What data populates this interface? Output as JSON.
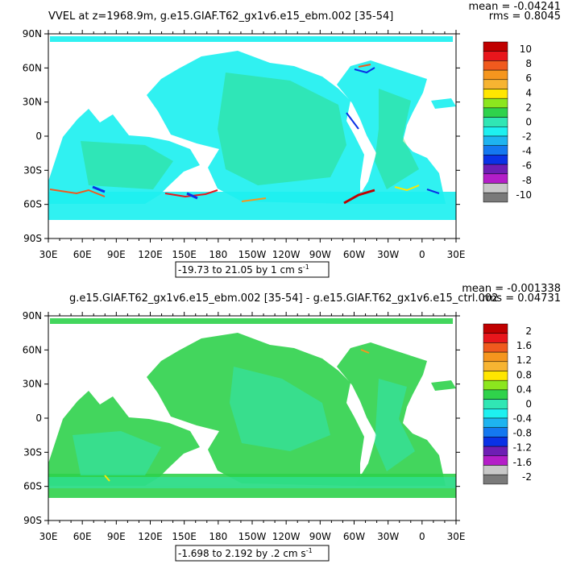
{
  "chart_data": [
    {
      "type": "heatmap",
      "title": "VVEL at z=1968.9m, g.e15.GIAF.T62_gx1v6.e15_ebm.002 [35-54]",
      "stat_mean": "mean = -0.04241",
      "stat_rms": "rms = 0.8045",
      "x_ticks": [
        "30E",
        "60E",
        "90E",
        "120E",
        "150E",
        "180",
        "150W",
        "120W",
        "90W",
        "60W",
        "30W",
        "0",
        "30E"
      ],
      "y_ticks": [
        "90N",
        "60N",
        "30N",
        "0",
        "30S",
        "60S",
        "90S"
      ],
      "contour_info_prefix": "-19.73 to 21.05 by 1 cm s",
      "contour_info_sup": "-1",
      "colorbar_labels": [
        "10",
        "8",
        "6",
        "4",
        "2",
        "0",
        "-2",
        "-4",
        "-6",
        "-8",
        "-10"
      ],
      "colors": [
        "#c00000",
        "#e8161c",
        "#f05a1e",
        "#f5961e",
        "#f7b432",
        "#ffe600",
        "#8ce61e",
        "#2fd24b",
        "#30e6b4",
        "#1ef0f0",
        "#1eb4f0",
        "#1478f0",
        "#0a32e6",
        "#6e1eb4",
        "#b41ec8",
        "#c8c8c8",
        "#7a7a7a"
      ]
    },
    {
      "type": "heatmap",
      "title": "g.e15.GIAF.T62_gx1v6.e15_ebm.002 [35-54] - g.e15.GIAF.T62_gx1v6.e15_ctrl.002",
      "stat_mean": "mean = -0.001338",
      "stat_rms": "rms = 0.04731",
      "x_ticks": [
        "30E",
        "60E",
        "90E",
        "120E",
        "150E",
        "180",
        "150W",
        "120W",
        "90W",
        "60W",
        "30W",
        "0",
        "30E"
      ],
      "y_ticks": [
        "90N",
        "60N",
        "30N",
        "0",
        "30S",
        "60S",
        "90S"
      ],
      "contour_info_prefix": "-1.698 to 2.192 by .2 cm s",
      "contour_info_sup": "-1",
      "colorbar_labels": [
        "2",
        "1.6",
        "1.2",
        "0.8",
        "0.4",
        "0",
        "-0.4",
        "-0.8",
        "-1.2",
        "-1.6",
        "-2"
      ],
      "colors": [
        "#c00000",
        "#e8161c",
        "#f05a1e",
        "#f5961e",
        "#f7b432",
        "#ffe600",
        "#8ce61e",
        "#2fd24b",
        "#30e6b4",
        "#1ef0f0",
        "#1eb4f0",
        "#1478f0",
        "#0a32e6",
        "#6e1eb4",
        "#b41ec8",
        "#c8c8c8",
        "#7a7a7a"
      ]
    }
  ]
}
